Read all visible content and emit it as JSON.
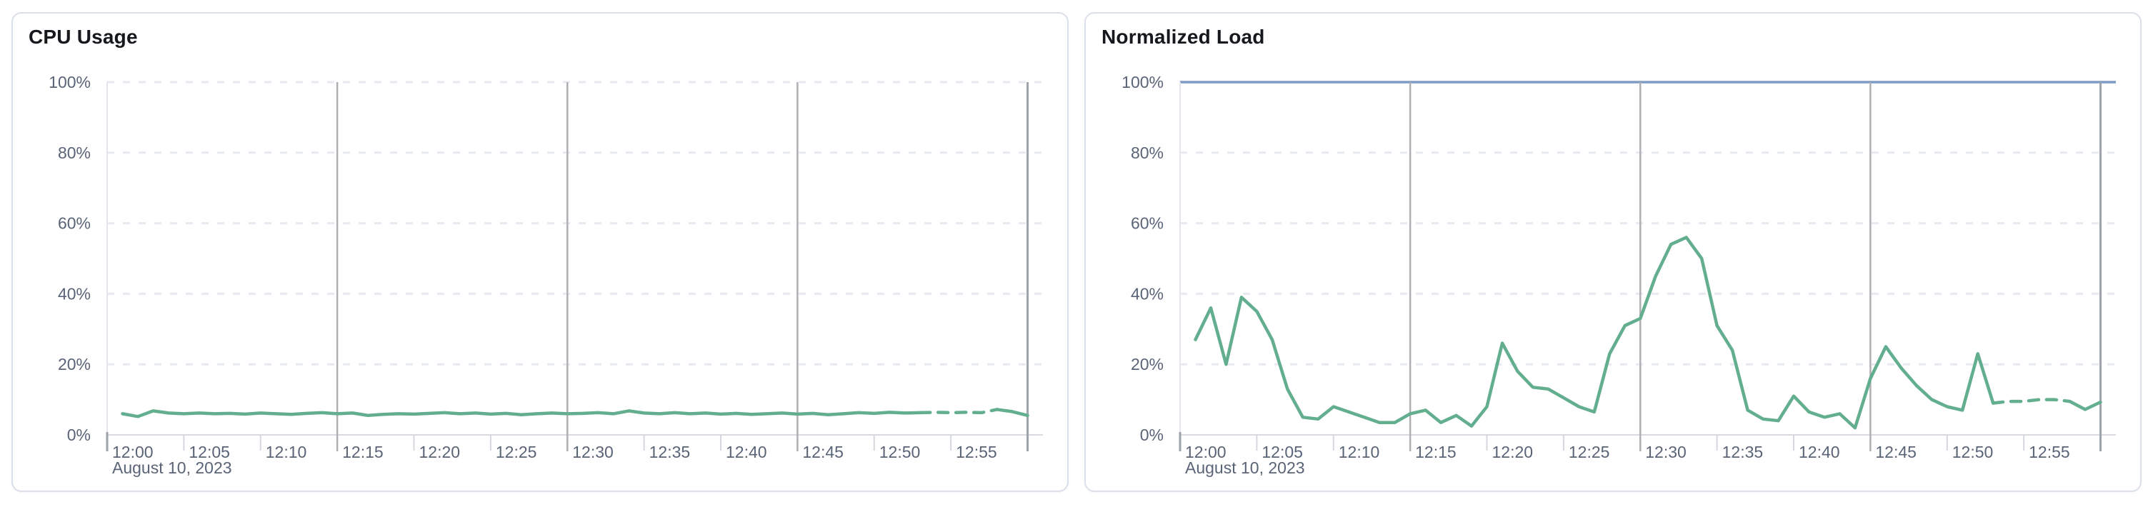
{
  "page": {
    "background": "#ffffff"
  },
  "chart_data": [
    {
      "type": "line",
      "title": "CPU Usage",
      "date_label": "August 10, 2023",
      "x_start": "12:00",
      "x_step_minutes": 1,
      "x_tick_labels": [
        "12:00",
        "12:05",
        "12:10",
        "12:15",
        "12:20",
        "12:25",
        "12:30",
        "12:35",
        "12:40",
        "12:45",
        "12:50",
        "12:55"
      ],
      "y_tick_labels": [
        "100%",
        "80%",
        "60%",
        "40%",
        "20%",
        "0%"
      ],
      "y_tick_values": [
        100,
        80,
        60,
        40,
        20,
        0
      ],
      "ylim": [
        0,
        100
      ],
      "grid": "horizontal-dashed, vertical lines each 15 min",
      "legend": "none",
      "line_color": "#62ae8e",
      "reference_line": null,
      "dashed_forecast": {
        "from_minute": 52,
        "to_minute": 57
      },
      "values_pct": [
        6,
        5.2,
        6.8,
        6.2,
        6,
        6.2,
        6,
        6.1,
        5.9,
        6.2,
        6,
        5.8,
        6.1,
        6.3,
        6,
        6.2,
        5.5,
        5.8,
        6,
        5.9,
        6.1,
        6.3,
        6,
        6.2,
        5.9,
        6.1,
        5.7,
        6,
        6.2,
        6,
        6.1,
        6.3,
        6,
        6.8,
        6.2,
        6,
        6.3,
        6,
        6.2,
        5.9,
        6.1,
        5.8,
        6,
        6.2,
        5.9,
        6.1,
        5.7,
        6,
        6.3,
        6.1,
        6.4,
        6.2,
        6.3,
        6.4,
        6.3,
        6.4,
        6.3,
        7.2,
        6.6,
        5.5
      ]
    },
    {
      "type": "line",
      "title": "Normalized Load",
      "date_label": "August 10, 2023",
      "x_start": "12:00",
      "x_step_minutes": 1,
      "x_tick_labels": [
        "12:00",
        "12:05",
        "12:10",
        "12:15",
        "12:20",
        "12:25",
        "12:30",
        "12:35",
        "12:40",
        "12:45",
        "12:50",
        "12:55"
      ],
      "y_tick_labels": [
        "100%",
        "80%",
        "60%",
        "40%",
        "20%",
        "0%"
      ],
      "y_tick_values": [
        100,
        80,
        60,
        40,
        20,
        0
      ],
      "ylim": [
        0,
        100
      ],
      "grid": "horizontal-dashed, vertical lines each 15 min",
      "legend": "none",
      "line_color": "#62ae8e",
      "reference_line": {
        "value": 100,
        "color": "#7e9cc5"
      },
      "dashed_forecast": {
        "from_minute": 52,
        "to_minute": 57
      },
      "values_pct": [
        27,
        36,
        20,
        39,
        35,
        27,
        13,
        5,
        4.5,
        8,
        6.5,
        5,
        3.5,
        3.5,
        6,
        7,
        3.5,
        5.5,
        2.5,
        8,
        26,
        18,
        13.5,
        13,
        10.5,
        8,
        6.5,
        23,
        31,
        33,
        45,
        54,
        56,
        50,
        31,
        24,
        7,
        4.5,
        4,
        11,
        6.5,
        5,
        6,
        2,
        16,
        25,
        19,
        14,
        10,
        8,
        7,
        23,
        9,
        9.5,
        9.5,
        10,
        10,
        9.5,
        7.2,
        9.3
      ]
    }
  ]
}
